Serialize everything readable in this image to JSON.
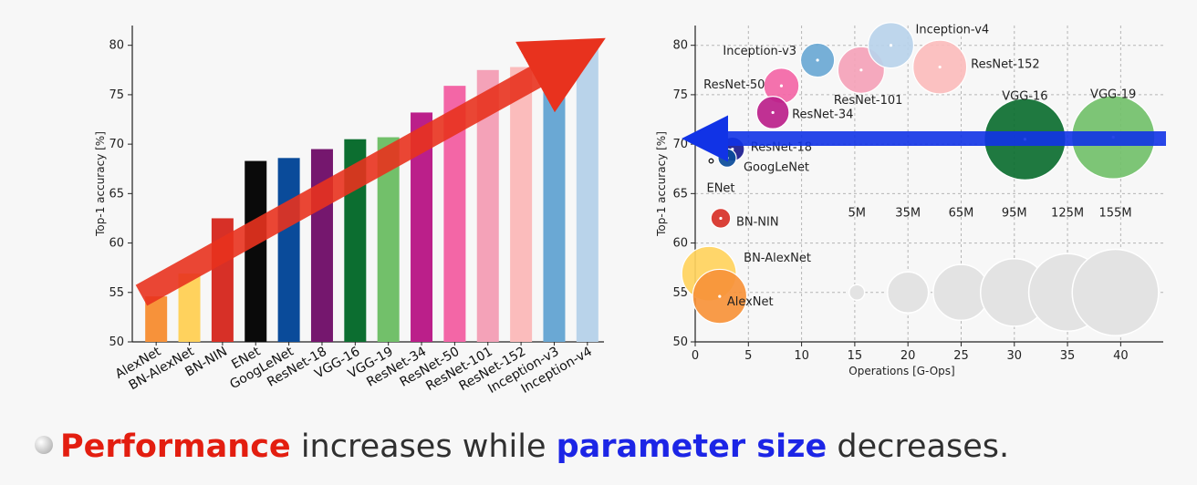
{
  "caption": {
    "part1": "Performance",
    "part2": " increases while ",
    "part3": "parameter size",
    "part4": " decreases.",
    "highlight_red": "#e31e10",
    "highlight_blue": "#1c25e6"
  },
  "chart_data": [
    {
      "type": "bar",
      "title": "",
      "xlabel": "",
      "ylabel": "Top-1 accuracy [%]",
      "ylim": [
        50,
        82
      ],
      "yticks": [
        50,
        55,
        60,
        65,
        70,
        75,
        80
      ],
      "grid": false,
      "categories": [
        "AlexNet",
        "BN-AlexNet",
        "BN-NIN",
        "ENet",
        "GoogLeNet",
        "ResNet-18",
        "VGG-16",
        "VGG-19",
        "ResNet-34",
        "ResNet-50",
        "ResNet-101",
        "ResNet-152",
        "Inception-v3",
        "Inception-v4"
      ],
      "values": [
        54.6,
        56.9,
        62.5,
        68.3,
        68.6,
        69.5,
        70.5,
        70.7,
        73.2,
        75.9,
        77.5,
        77.8,
        78.5,
        80.0
      ],
      "colors": [
        "#f7923a",
        "#ffd25d",
        "#d73027",
        "#0a0a0a",
        "#0a4b9a",
        "#75176e",
        "#0c6e30",
        "#72c06a",
        "#bb1f8a",
        "#f366a6",
        "#f4a2b8",
        "#fbbcbc",
        "#6aa8d4",
        "#b9d3ea"
      ],
      "annotations": [
        {
          "kind": "arrow",
          "direction": "upward",
          "color": "#e8321e"
        }
      ]
    },
    {
      "type": "scatter",
      "title": "",
      "xlabel": "Operations [G-Ops]",
      "ylabel": "Top-1 accuracy [%]",
      "xlim": [
        0,
        44
      ],
      "ylim": [
        50,
        82
      ],
      "xticks": [
        0,
        5,
        10,
        15,
        20,
        25,
        30,
        35,
        40
      ],
      "yticks": [
        50,
        55,
        60,
        65,
        70,
        75,
        80
      ],
      "grid": true,
      "points": [
        {
          "name": "AlexNet",
          "x": 2.3,
          "y": 54.6,
          "params_m": 61,
          "color": "#f7923a"
        },
        {
          "name": "BN-AlexNet",
          "x": 1.3,
          "y": 56.9,
          "params_m": 62,
          "color": "#ffd25d"
        },
        {
          "name": "BN-NIN",
          "x": 2.4,
          "y": 62.5,
          "params_m": 8,
          "color": "#d73027"
        },
        {
          "name": "ENet",
          "x": 1.5,
          "y": 68.3,
          "params_m": 0.4,
          "color": "#0a0a0a"
        },
        {
          "name": "GoogLeNet",
          "x": 3.0,
          "y": 68.6,
          "params_m": 7,
          "color": "#0a4b9a"
        },
        {
          "name": "ResNet-18",
          "x": 3.5,
          "y": 69.5,
          "params_m": 12,
          "color": "#1a1a8e"
        },
        {
          "name": "VGG-16",
          "x": 31.0,
          "y": 70.5,
          "params_m": 138,
          "color": "#0c6e30"
        },
        {
          "name": "VGG-19",
          "x": 39.3,
          "y": 70.7,
          "params_m": 144,
          "color": "#72c06a"
        },
        {
          "name": "ResNet-34",
          "x": 7.3,
          "y": 73.2,
          "params_m": 22,
          "color": "#bb1f8a"
        },
        {
          "name": "ResNet-50",
          "x": 8.1,
          "y": 75.9,
          "params_m": 26,
          "color": "#f366a6"
        },
        {
          "name": "ResNet-101",
          "x": 15.6,
          "y": 77.5,
          "params_m": 45,
          "color": "#f4a2b8"
        },
        {
          "name": "ResNet-152",
          "x": 23.0,
          "y": 77.8,
          "params_m": 60,
          "color": "#fbbcbc"
        },
        {
          "name": "Inception-v3",
          "x": 11.5,
          "y": 78.5,
          "params_m": 24,
          "color": "#6aa8d4"
        },
        {
          "name": "Inception-v4",
          "x": 18.4,
          "y": 80.0,
          "params_m": 43,
          "color": "#b9d3ea"
        }
      ],
      "size_legend": [
        {
          "label": "5M",
          "x": 15.2,
          "y": 55,
          "params_m": 5
        },
        {
          "label": "35M",
          "x": 20.0,
          "y": 55,
          "params_m": 35
        },
        {
          "label": "65M",
          "x": 25.0,
          "y": 55,
          "params_m": 65
        },
        {
          "label": "95M",
          "x": 30.0,
          "y": 55,
          "params_m": 95
        },
        {
          "label": "125M",
          "x": 35.0,
          "y": 55,
          "params_m": 125
        },
        {
          "label": "155M",
          "x": 39.5,
          "y": 55,
          "params_m": 155
        }
      ],
      "size_legend_color": "#e3e3e3",
      "annotations": [
        {
          "kind": "arrow",
          "direction": "leftward",
          "color": "#1133e6"
        }
      ]
    }
  ]
}
